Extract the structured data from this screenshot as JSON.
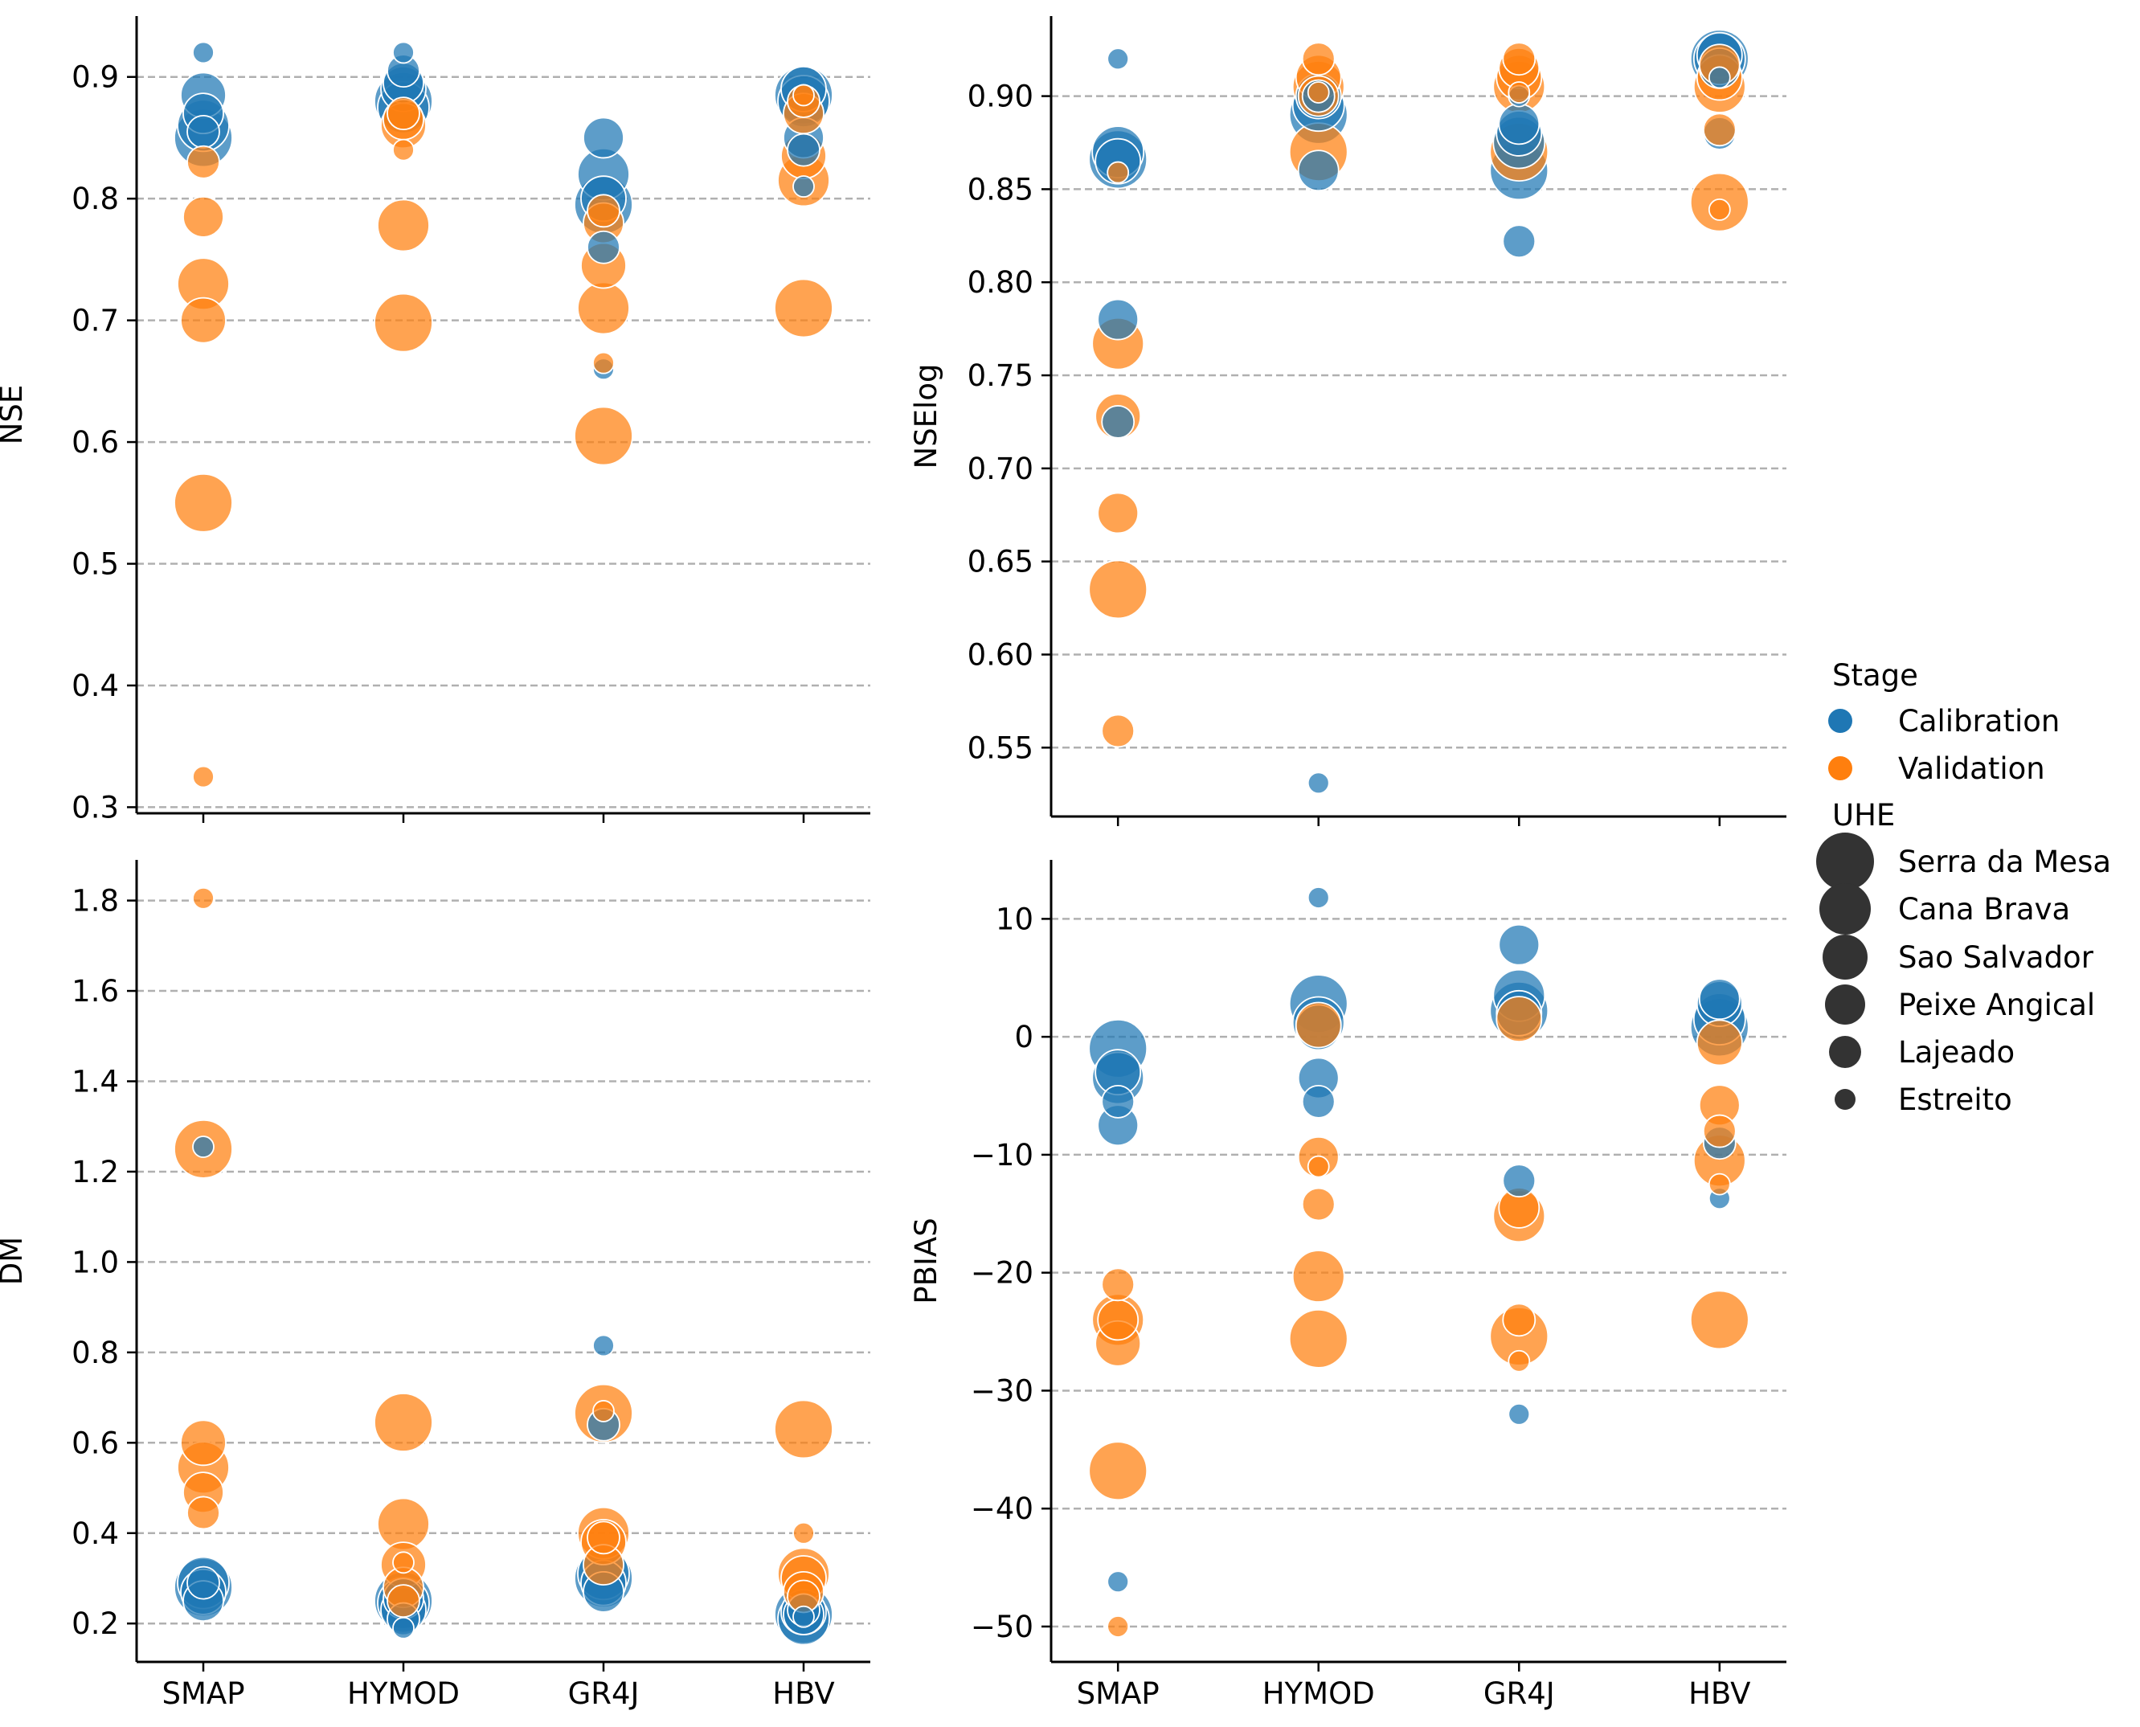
{
  "colors": {
    "calibration": "#1f77b4",
    "validation": "#ff7f0e",
    "grid": "#b0b0b0",
    "legend_size": "#333333"
  },
  "models": [
    "SMAP",
    "HYMOD",
    "GR4J",
    "HBV"
  ],
  "uhe_order": [
    "Serra da Mesa",
    "Cana Brava",
    "Sao Salvador",
    "Peixe Angical",
    "Lajeado",
    "Estreito"
  ],
  "legend": {
    "stage_title": "Stage",
    "stages": [
      "Calibration",
      "Validation"
    ],
    "uhe_title": "UHE",
    "uhe": [
      "Serra da Mesa",
      "Cana Brava",
      "Sao Salvador",
      "Peixe Angical",
      "Lajeado",
      "Estreito"
    ]
  },
  "chart_data": [
    {
      "type": "scatter",
      "panel": "top-left",
      "ylabel": "NSE",
      "ylim": [
        0.295,
        0.95
      ],
      "yticks": [
        0.3,
        0.4,
        0.5,
        0.6,
        0.7,
        0.8,
        0.9
      ],
      "ytick_labels": [
        "0.3",
        "0.4",
        "0.5",
        "0.6",
        "0.7",
        "0.8",
        "0.9"
      ],
      "show_xticklabels": false,
      "calibration": {
        "SMAP": [
          0.85,
          0.86,
          0.885,
          0.87,
          0.855,
          0.92
        ],
        "HYMOD": [
          0.88,
          0.875,
          0.89,
          0.895,
          0.905,
          0.92
        ],
        "GR4J": [
          0.795,
          0.82,
          0.8,
          0.85,
          0.76,
          0.66
        ],
        "HBV": [
          0.885,
          0.88,
          0.89,
          0.85,
          0.84,
          0.81
        ]
      },
      "validation": {
        "SMAP": [
          0.55,
          0.73,
          0.7,
          0.785,
          0.83,
          0.325
        ],
        "HYMOD": [
          0.698,
          0.778,
          0.86,
          0.865,
          0.87,
          0.84
        ],
        "GR4J": [
          0.605,
          0.71,
          0.745,
          0.78,
          0.79,
          0.665
        ],
        "HBV": [
          0.71,
          0.815,
          0.835,
          0.87,
          0.88,
          0.885
        ]
      }
    },
    {
      "type": "scatter",
      "panel": "top-right",
      "ylabel": "NSElog",
      "ylim": [
        0.513,
        0.943
      ],
      "yticks": [
        0.55,
        0.6,
        0.65,
        0.7,
        0.75,
        0.8,
        0.85,
        0.9
      ],
      "ytick_labels": [
        "0.55",
        "0.60",
        "0.65",
        "0.70",
        "0.75",
        "0.80",
        "0.85",
        "0.90"
      ],
      "show_xticklabels": false,
      "calibration": {
        "SMAP": [
          0.866,
          0.87,
          0.865,
          0.78,
          0.725,
          0.92
        ],
        "HYMOD": [
          0.89,
          0.895,
          0.9,
          0.86,
          0.9,
          0.531
        ],
        "GR4J": [
          0.86,
          0.875,
          0.88,
          0.885,
          0.822,
          0.9
        ],
        "HBV": [
          0.92,
          0.92,
          0.922,
          0.915,
          0.88,
          0.91
        ]
      },
      "validation": {
        "SMAP": [
          0.635,
          0.767,
          0.728,
          0.676,
          0.559,
          0.859
        ],
        "HYMOD": [
          0.87,
          0.905,
          0.91,
          0.9,
          0.92,
          0.902
        ],
        "GR4J": [
          0.87,
          0.905,
          0.91,
          0.915,
          0.92,
          0.902
        ],
        "HBV": [
          0.843,
          0.905,
          0.91,
          0.917,
          0.882,
          0.839
        ]
      }
    },
    {
      "type": "scatter",
      "panel": "bottom-left",
      "ylabel": "DM",
      "ylim": [
        0.115,
        1.89
      ],
      "yticks": [
        0.2,
        0.4,
        0.6,
        0.8,
        1.0,
        1.2,
        1.4,
        1.6,
        1.8
      ],
      "ytick_labels": [
        "0.2",
        "0.4",
        "0.6",
        "0.8",
        "1.0",
        "1.2",
        "1.4",
        "1.6",
        "1.8"
      ],
      "show_xticklabels": true,
      "calibration": {
        "SMAP": [
          0.28,
          0.29,
          0.27,
          0.25,
          0.29,
          1.255
        ],
        "HYMOD": [
          0.25,
          0.245,
          0.23,
          0.255,
          0.21,
          0.19
        ],
        "GR4J": [
          0.3,
          0.31,
          0.29,
          0.27,
          0.64,
          0.815
        ],
        "HBV": [
          0.22,
          0.21,
          0.225,
          0.22,
          0.23,
          0.215
        ]
      },
      "validation": {
        "SMAP": [
          1.25,
          0.545,
          0.6,
          0.49,
          0.445,
          1.805
        ],
        "HYMOD": [
          0.645,
          0.42,
          0.33,
          0.28,
          0.25,
          0.335
        ],
        "GR4J": [
          0.665,
          0.4,
          0.38,
          0.33,
          0.39,
          0.67
        ],
        "HBV": [
          0.63,
          0.31,
          0.3,
          0.27,
          0.26,
          0.4
        ]
      }
    },
    {
      "type": "scatter",
      "panel": "bottom-right",
      "ylabel": "PBIAS",
      "ylim": [
        -53,
        15
      ],
      "yticks": [
        -50,
        -40,
        -30,
        -20,
        -10,
        0,
        10
      ],
      "ytick_labels": [
        "−50",
        "−40",
        "−30",
        "−20",
        "−10",
        "0",
        "10"
      ],
      "show_xticklabels": true,
      "calibration": {
        "SMAP": [
          -1,
          -3.5,
          -3,
          -7.5,
          -5.5,
          -46.2
        ],
        "HYMOD": [
          2.8,
          1.2,
          0.8,
          -3.5,
          -5.5,
          11.8
        ],
        "GR4J": [
          2.2,
          3.5,
          2.0,
          7.8,
          -12.2,
          -32
        ],
        "HBV": [
          0.8,
          1.5,
          2.8,
          3.2,
          -9,
          -13.7
        ]
      },
      "validation": {
        "SMAP": [
          -36.8,
          -24,
          -26,
          -24,
          -21,
          -50
        ],
        "HYMOD": [
          -25.6,
          -20.3,
          1.0,
          -10.2,
          -14.2,
          -11
        ],
        "GR4J": [
          -25.4,
          -15.2,
          1.5,
          -14.5,
          -24,
          -27.5
        ],
        "HBV": [
          -24,
          -10.5,
          -0.5,
          -5.8,
          -8,
          -12.5
        ]
      }
    }
  ]
}
